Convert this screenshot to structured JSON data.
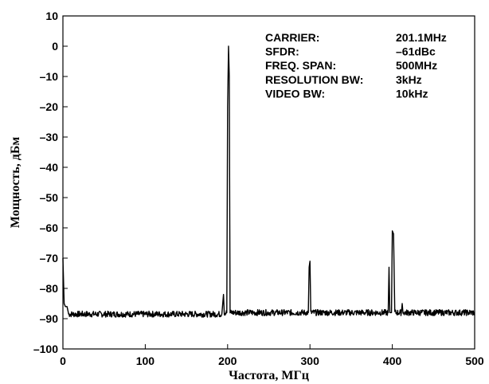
{
  "chart_data": {
    "type": "line",
    "title": "",
    "xlabel": "Частота, МГц",
    "ylabel": "Мощность, дБм",
    "xlim": [
      0,
      500
    ],
    "ylim": [
      -100,
      10
    ],
    "x_ticks": [
      0,
      100,
      200,
      300,
      400,
      500
    ],
    "x_tick_labels": [
      "0",
      "100",
      "200",
      "300",
      "400",
      "500"
    ],
    "y_ticks": [
      10,
      0,
      -10,
      -20,
      -30,
      -40,
      -50,
      -60,
      -70,
      -80,
      -90,
      -100
    ],
    "y_tick_labels": [
      "10",
      "0",
      "–10",
      "–20",
      "–30",
      "–40",
      "–50",
      "–60",
      "–70",
      "–80",
      "–90",
      "–100"
    ],
    "grid": false,
    "noise_floor": -88,
    "series": [
      {
        "points": [
          [
            0,
            -70
          ],
          [
            1.5,
            -85
          ],
          [
            3,
            -86
          ],
          [
            5,
            -86
          ],
          [
            7,
            -88.5
          ],
          [
            10,
            -88.5
          ],
          [
            193,
            -88.5
          ],
          [
            195,
            -82
          ],
          [
            196,
            -88
          ],
          [
            199,
            -88
          ],
          [
            200,
            -20
          ],
          [
            201.1,
            0
          ],
          [
            202,
            -10
          ],
          [
            203,
            -88
          ],
          [
            298,
            -88
          ],
          [
            299,
            -73
          ],
          [
            300,
            -71
          ],
          [
            301,
            -88
          ],
          [
            395,
            -88
          ],
          [
            396,
            -73
          ],
          [
            397,
            -88
          ],
          [
            399,
            -88
          ],
          [
            400,
            -61
          ],
          [
            401.5,
            -62
          ],
          [
            403,
            -88
          ],
          [
            411,
            -88
          ],
          [
            412,
            -85
          ],
          [
            413,
            -88
          ],
          [
            500,
            -88
          ]
        ]
      }
    ],
    "annotations": [
      {
        "label": "CARRIER:",
        "value": "201.1MHz"
      },
      {
        "label": "SFDR:",
        "value": "–61dBc"
      },
      {
        "label": "FREQ. SPAN:",
        "value": "500MHz"
      },
      {
        "label": "RESOLUTION BW:",
        "value": "3kHz"
      },
      {
        "label": "VIDEO BW:",
        "value": "10kHz"
      }
    ]
  }
}
